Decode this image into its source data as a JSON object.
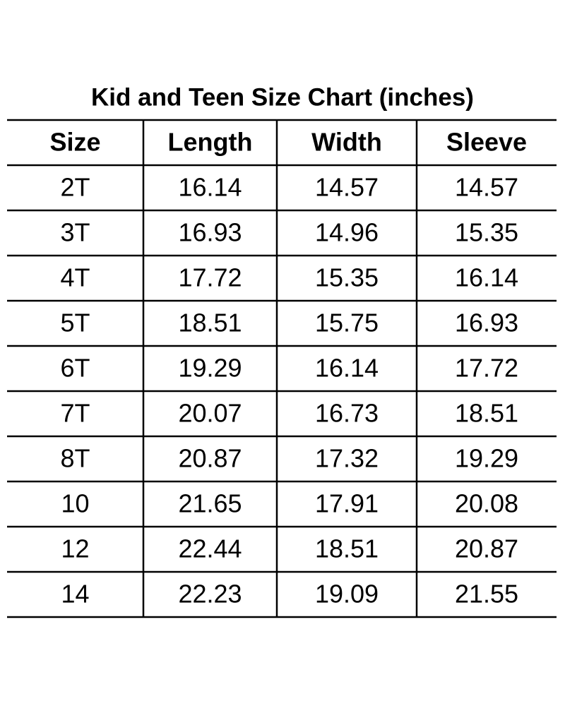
{
  "header": {
    "title": "Kid and Teen Size Chart (inches)"
  },
  "table": {
    "columns": [
      "Size",
      "Length",
      "Width",
      "Sleeve"
    ],
    "rows": [
      [
        "2T",
        "16.14",
        "14.57",
        "14.57"
      ],
      [
        "3T",
        "16.93",
        "14.96",
        "15.35"
      ],
      [
        "4T",
        "17.72",
        "15.35",
        "16.14"
      ],
      [
        "5T",
        "18.51",
        "15.75",
        "16.93"
      ],
      [
        "6T",
        "19.29",
        "16.14",
        "17.72"
      ],
      [
        "7T",
        "20.07",
        "16.73",
        "18.51"
      ],
      [
        "8T",
        "20.87",
        "17.32",
        "19.29"
      ],
      [
        "10",
        "21.65",
        "17.91",
        "20.08"
      ],
      [
        "12",
        "22.44",
        "18.51",
        "20.87"
      ],
      [
        "14",
        "22.23",
        "19.09",
        "21.55"
      ]
    ]
  }
}
